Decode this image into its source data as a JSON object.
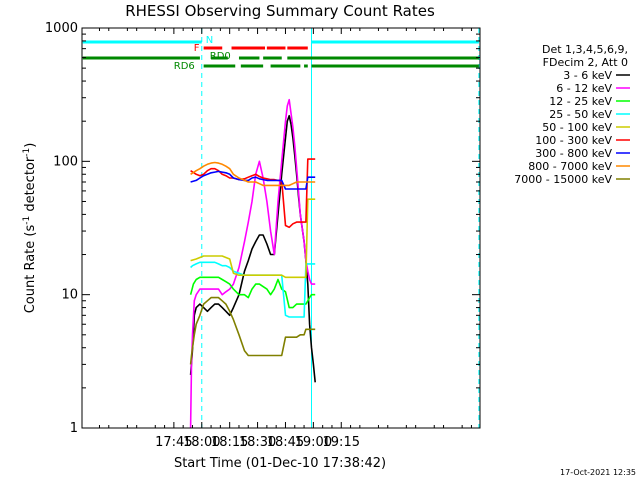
{
  "chart_data": {
    "type": "line",
    "title": "RHESSI Observing Summary Count Rates",
    "xlabel": "Start Time (01-Dec-10 17:38:42)",
    "ylabel_main": "Count Rate (s",
    "ylabel_sup": "-1",
    "ylabel_mid": " detector",
    "ylabel_sup2": "-1",
    "ylabel_end": ")",
    "footer": "17-Oct-2021 12:35",
    "yscale": "log",
    "ylim": [
      1,
      1000
    ],
    "xlim": [
      -49.4,
      164.6
    ],
    "xticks": [
      {
        "v": 0,
        "label": "17:45"
      },
      {
        "v": 15,
        "label": "18:00"
      },
      {
        "v": 30,
        "label": "18:15"
      },
      {
        "v": 45,
        "label": "18:30"
      },
      {
        "v": 60,
        "label": "18:45"
      },
      {
        "v": 75,
        "label": "19:00"
      },
      {
        "v": 90,
        "label": "19:15"
      }
    ],
    "yticks": [
      {
        "v": 1,
        "label": "1"
      },
      {
        "v": 10,
        "label": "10"
      },
      {
        "v": 100,
        "label": "100"
      },
      {
        "v": 1000,
        "label": "1000"
      }
    ],
    "legend_position": "right",
    "legend_header": [
      "Det 1,3,4,5,6,9,",
      "FDecim 2, Att 0"
    ],
    "series": [
      {
        "name": "3 - 6 keV",
        "color": "#000000",
        "x": [
          9,
          9.8,
          10.5,
          11,
          12,
          14,
          16,
          18,
          20,
          22,
          24,
          26,
          28,
          30,
          32,
          35,
          38,
          40,
          42,
          44,
          46,
          48,
          50,
          52,
          54,
          56,
          58,
          60,
          61,
          62,
          63,
          64,
          65,
          66,
          67,
          68,
          70,
          71,
          72,
          73,
          74,
          75,
          76
        ],
        "y": [
          2.5,
          3.5,
          5,
          7,
          8,
          8.5,
          8,
          7.5,
          8,
          8.5,
          8.5,
          8,
          7.5,
          7,
          8,
          10,
          15,
          18,
          22,
          25,
          28,
          28,
          24,
          20,
          20,
          40,
          80,
          150,
          200,
          220,
          190,
          150,
          110,
          80,
          55,
          40,
          25,
          18,
          12,
          6,
          4,
          3,
          2.2
        ]
      },
      {
        "name": "6 - 12 keV",
        "color": "#ff00ff",
        "x": [
          9,
          9.5,
          10,
          11,
          12,
          14,
          16,
          18,
          20,
          22,
          24,
          26,
          28,
          30,
          32,
          35,
          38,
          40,
          42,
          44,
          46,
          48,
          50,
          52,
          54,
          56,
          58,
          60,
          61,
          62,
          63,
          64,
          65,
          66,
          67,
          68,
          70,
          71,
          72,
          73,
          74,
          75,
          76
        ],
        "y": [
          1,
          3,
          5,
          9,
          10,
          11,
          11,
          11,
          11,
          11,
          11,
          10,
          10.5,
          11,
          12,
          16,
          25,
          35,
          50,
          80,
          100,
          75,
          50,
          30,
          20,
          50,
          100,
          200,
          260,
          290,
          230,
          180,
          130,
          90,
          60,
          40,
          25,
          18,
          15,
          13,
          12,
          12,
          12
        ]
      },
      {
        "name": "12 - 25 keV",
        "color": "#00ff00",
        "x": [
          9,
          9.8,
          10.5,
          12,
          14,
          16,
          18,
          20,
          22,
          24,
          26,
          28,
          30,
          32,
          35,
          38,
          40,
          42,
          44,
          46,
          48,
          50,
          52,
          54,
          56,
          58,
          60,
          62,
          64,
          66,
          68,
          70,
          71,
          72,
          73,
          74,
          75,
          76
        ],
        "y": [
          10,
          11,
          12,
          13,
          13.5,
          13.5,
          13.5,
          13.5,
          13.5,
          13.5,
          13,
          12.5,
          12,
          11,
          10,
          10,
          9.5,
          11,
          12,
          12,
          11.5,
          11,
          10,
          11,
          13,
          11,
          10.5,
          8,
          8,
          8.5,
          8.5,
          8.5,
          8.5,
          9,
          9.5,
          10,
          10,
          10
        ]
      },
      {
        "name": "25 - 50 keV",
        "color": "#00ffff",
        "x": [
          9,
          10,
          12,
          14,
          16,
          18,
          20,
          22,
          24,
          26,
          28,
          30,
          32,
          35,
          38,
          40,
          42,
          44,
          46,
          48,
          50,
          52,
          54,
          56,
          58,
          60,
          62,
          64,
          66,
          68,
          70,
          71,
          72,
          73,
          74,
          75,
          76
        ],
        "y": [
          16,
          16.5,
          17,
          17.5,
          17.5,
          17.5,
          17.5,
          17.5,
          17,
          16.5,
          16.5,
          16,
          15,
          14.5,
          14,
          14,
          14,
          14,
          14,
          14,
          14,
          14,
          14,
          14,
          14,
          7,
          6.8,
          6.8,
          6.8,
          6.8,
          6.8,
          17,
          17,
          17,
          17,
          17,
          17
        ]
      },
      {
        "name": "50 - 100 keV",
        "color": "#cccc00",
        "x": [
          9,
          12,
          14,
          16,
          18,
          20,
          22,
          24,
          26,
          28,
          30,
          32,
          35,
          38,
          40,
          42,
          44,
          46,
          48,
          50,
          52,
          54,
          56,
          58,
          60,
          62,
          64,
          66,
          68,
          70,
          71,
          72,
          73,
          74,
          75,
          76
        ],
        "y": [
          18,
          18.5,
          19,
          19.5,
          19.5,
          19.5,
          19.5,
          19.5,
          19.5,
          19,
          18.5,
          14.5,
          14,
          14,
          14,
          14,
          14,
          14,
          14,
          14,
          14,
          14,
          14,
          14,
          13.5,
          13.5,
          13.5,
          13.5,
          13.5,
          13.5,
          13.5,
          52,
          52,
          52,
          52,
          52
        ]
      },
      {
        "name": "100 - 300 keV",
        "color": "#ff0000",
        "x": [
          9,
          12,
          14,
          16,
          18,
          20,
          22,
          24,
          26,
          28,
          30,
          32,
          35,
          38,
          40,
          42,
          44,
          46,
          48,
          50,
          52,
          54,
          56,
          58,
          60,
          62,
          64,
          66,
          68,
          70,
          71,
          72,
          73,
          74,
          75,
          76
        ],
        "y": [
          85,
          80,
          78,
          80,
          85,
          88,
          88,
          85,
          80,
          78,
          75,
          75,
          73,
          74,
          76,
          78,
          80,
          77,
          75,
          74,
          73,
          73,
          72,
          72,
          33,
          32,
          34,
          35,
          35,
          35,
          35,
          104,
          104,
          104,
          104,
          104
        ]
      },
      {
        "name": "300 - 800 keV",
        "color": "#0000ff",
        "x": [
          9,
          12,
          14,
          16,
          18,
          20,
          22,
          24,
          26,
          28,
          30,
          32,
          35,
          38,
          40,
          42,
          44,
          46,
          48,
          50,
          52,
          54,
          56,
          58,
          60,
          62,
          64,
          66,
          68,
          70,
          71,
          72,
          73,
          74,
          75,
          76
        ],
        "y": [
          70,
          72,
          75,
          78,
          80,
          82,
          83,
          84,
          83,
          82,
          80,
          75,
          73,
          72,
          72,
          75,
          76,
          74,
          73,
          72,
          72,
          72,
          72,
          72,
          62,
          62,
          62,
          62,
          62,
          62,
          62,
          76,
          76,
          76,
          76,
          76
        ]
      },
      {
        "name": "800 - 7000 keV",
        "color": "#ff8800",
        "x": [
          9,
          12,
          14,
          16,
          18,
          20,
          22,
          24,
          26,
          28,
          30,
          32,
          35,
          38,
          40,
          42,
          44,
          46,
          48,
          50,
          52,
          54,
          56,
          58,
          60,
          62,
          64,
          66,
          68,
          70,
          71,
          72,
          73,
          74,
          75,
          76
        ],
        "y": [
          80,
          85,
          88,
          92,
          95,
          97,
          98,
          97,
          95,
          92,
          88,
          80,
          75,
          72,
          70,
          70,
          70,
          68,
          66,
          66,
          66,
          66,
          66,
          66,
          66,
          66,
          68,
          70,
          70,
          70,
          70,
          70,
          70,
          70,
          70,
          70
        ]
      },
      {
        "name": "7000 - 15000 keV",
        "color": "#808000",
        "x": [
          9,
          9.5,
          10,
          11,
          12,
          14,
          16,
          18,
          20,
          22,
          24,
          26,
          28,
          30,
          32,
          35,
          38,
          40,
          42,
          44,
          46,
          48,
          50,
          52,
          54,
          56,
          58,
          60,
          62,
          64,
          66,
          68,
          70,
          71,
          72,
          73,
          74,
          75,
          76
        ],
        "y": [
          3,
          3.5,
          4,
          5,
          6,
          7,
          8.5,
          9,
          9.5,
          9.5,
          9.5,
          9,
          8.5,
          7.5,
          6.5,
          5,
          3.8,
          3.5,
          3.5,
          3.5,
          3.5,
          3.5,
          3.5,
          3.5,
          3.5,
          3.5,
          3.5,
          4.8,
          4.8,
          4.8,
          4.8,
          5,
          5,
          5.5,
          5.5,
          5.5,
          5.5,
          5.5,
          5.5
        ]
      }
    ],
    "flags": [
      {
        "label": "N",
        "color": "#00ffff",
        "segments": [
          [
            -49,
            15
          ],
          [
            74,
            164
          ]
        ]
      },
      {
        "label": "F",
        "color": "#ff0000",
        "segments": [
          [
            16,
            26
          ],
          [
            31,
            49
          ],
          [
            50,
            60
          ],
          [
            61,
            72
          ]
        ]
      },
      {
        "label": "RD0",
        "color": "#008800",
        "segments": [
          [
            -49,
            14
          ],
          [
            20,
            29
          ],
          [
            35,
            46
          ],
          [
            48,
            58
          ],
          [
            61,
            164
          ]
        ]
      },
      {
        "label": "RD6",
        "color": "#008800",
        "segments": [
          [
            16,
            33
          ],
          [
            36,
            48
          ],
          [
            52,
            68
          ],
          [
            70,
            72
          ],
          [
            74,
            164
          ]
        ]
      }
    ],
    "vlines": [
      {
        "x": 15,
        "color": "#00ffff",
        "dashed": true
      },
      {
        "x": 74,
        "color": "#00ffff",
        "dashed": false
      },
      {
        "x": 164,
        "color": "#00ffff",
        "dashed": true
      }
    ]
  }
}
